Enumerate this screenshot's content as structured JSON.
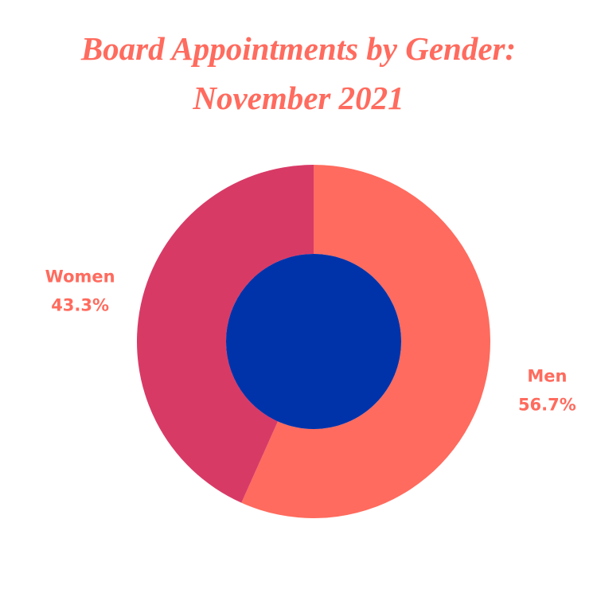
{
  "chart_data": {
    "type": "donut",
    "title": "Board Appointments by Gender: November 2021",
    "categories": [
      "Men",
      "Women"
    ],
    "values": [
      56.7,
      43.3
    ],
    "value_labels": [
      "56.7%",
      "43.3%"
    ],
    "colors": [
      "#ff6b5e",
      "#d83a66"
    ],
    "hole_color": "#0033aa"
  }
}
